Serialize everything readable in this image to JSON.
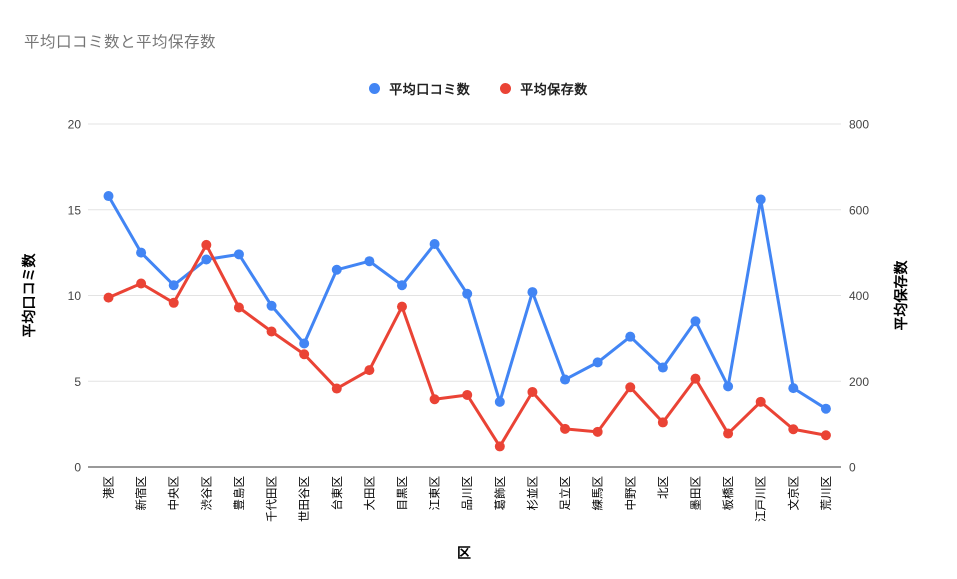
{
  "title": "平均口コミ数と平均保存数",
  "legend": {
    "items": [
      {
        "key": "reviews",
        "label": "平均口コミ数",
        "color": "#4285F4"
      },
      {
        "key": "saves",
        "label": "平均保存数",
        "color": "#EA4335"
      }
    ]
  },
  "colors": {
    "title_text": "#757575",
    "tick_text": "#444444",
    "category_text": "#000000",
    "axis_title_text": "#000000",
    "gridline": "#E3E3E3",
    "axis_line": "#333333",
    "series_blue": "#4285F4",
    "series_red": "#EA4335",
    "background": "#FFFFFF"
  },
  "chart_data": {
    "type": "line",
    "title": "平均口コミ数と平均保存数",
    "xlabel": "区",
    "ylabel_left": "平均口コミ数",
    "ylabel_right": "平均保存数",
    "ylim_left": [
      0,
      20
    ],
    "ylim_right": [
      0,
      800
    ],
    "y_left_ticks": [
      0,
      5,
      10,
      15,
      20
    ],
    "y_right_ticks": [
      0,
      200,
      400,
      600,
      800
    ],
    "grid": true,
    "legend_position": "top",
    "x_labels_rotated": true,
    "categories": [
      "港区",
      "新宿区",
      "中央区",
      "渋谷区",
      "豊島区",
      "千代田区",
      "世田谷区",
      "台東区",
      "大田区",
      "目黒区",
      "江東区",
      "品川区",
      "葛飾区",
      "杉並区",
      "足立区",
      "練馬区",
      "中野区",
      "北区",
      "墨田区",
      "板橋区",
      "江戸川区",
      "文京区",
      "荒川区"
    ],
    "series": [
      {
        "key": "reviews",
        "name": "平均口コミ数",
        "axis": "left",
        "color": "#4285F4",
        "values": [
          15.8,
          12.5,
          10.6,
          12.1,
          12.4,
          9.4,
          7.2,
          11.5,
          12.0,
          10.6,
          13.0,
          10.1,
          3.8,
          10.2,
          5.1,
          6.1,
          7.6,
          5.8,
          8.5,
          4.7,
          15.6,
          4.6,
          3.4
        ]
      },
      {
        "key": "saves",
        "name": "平均保存数",
        "axis": "right",
        "color": "#EA4335",
        "values": [
          395,
          428,
          383,
          518,
          372,
          316,
          263,
          183,
          226,
          374,
          158,
          168,
          48,
          175,
          89,
          82,
          186,
          104,
          206,
          78,
          152,
          88,
          74
        ]
      }
    ]
  }
}
